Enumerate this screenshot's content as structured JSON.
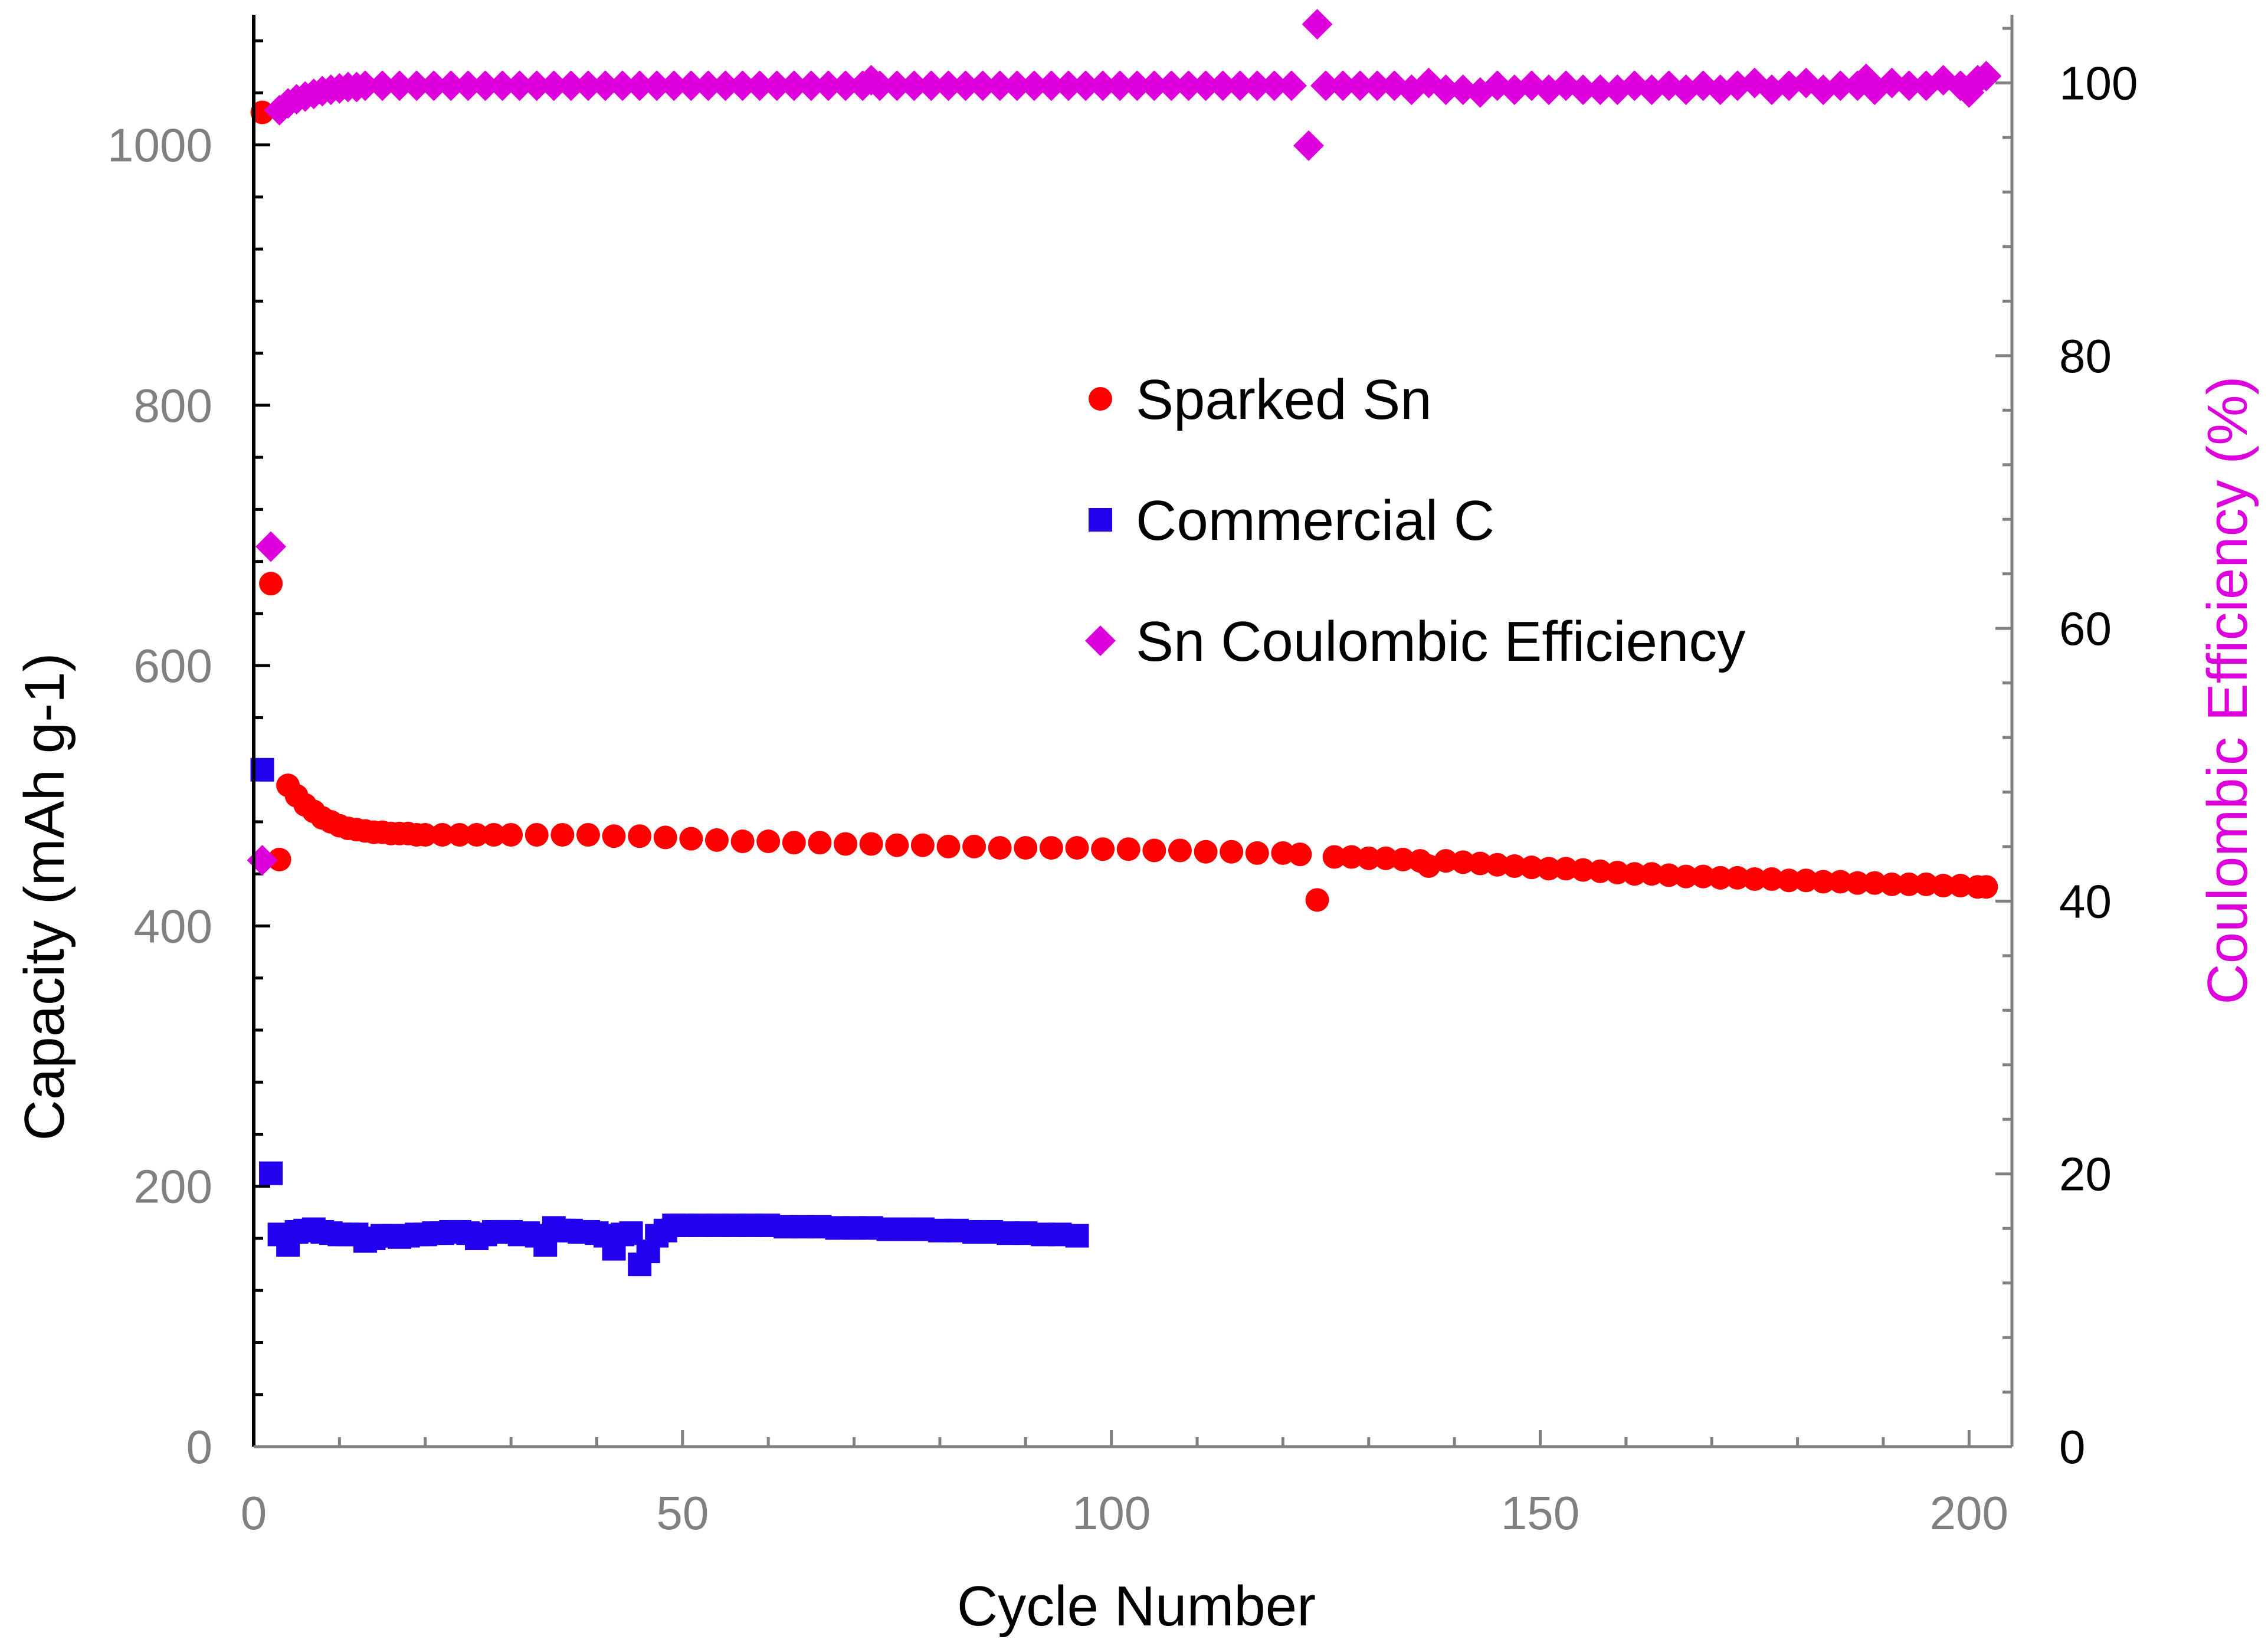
{
  "chart_data": {
    "type": "scatter",
    "xlabel": "Cycle Number",
    "ylabel_left": "Capacity (mAh g-1)",
    "ylabel_right": "Coulombic Efficiency (%)",
    "xlim": [
      0,
      205
    ],
    "ylim_left": [
      0,
      1100
    ],
    "ylim_right": [
      0,
      105
    ],
    "x_ticks": [
      0,
      50,
      100,
      150,
      200
    ],
    "y_ticks_left": [
      0,
      200,
      400,
      600,
      800,
      1000
    ],
    "y_ticks_right": [
      0,
      20,
      40,
      60,
      80,
      100
    ],
    "legend_position": "center-right",
    "colors": {
      "sparked_sn": "#ff0000",
      "commercial_c": "#2200ee",
      "coulombic": "#dd00dd",
      "right_axis_title": "#dd00dd",
      "left_tick_labels": "#808080",
      "right_tick_labels": "#000000"
    },
    "series": [
      {
        "name": "Sparked Sn",
        "axis": "left",
        "marker": "circle",
        "points": [
          [
            1,
            1025
          ],
          [
            2,
            663
          ],
          [
            3,
            451
          ],
          [
            4,
            508
          ],
          [
            5,
            500
          ],
          [
            6,
            493
          ],
          [
            7,
            488
          ],
          [
            8,
            483
          ],
          [
            9,
            480
          ],
          [
            10,
            477
          ],
          [
            11,
            475
          ],
          [
            12,
            474
          ],
          [
            13,
            473
          ],
          [
            14,
            472
          ],
          [
            15,
            472
          ],
          [
            16,
            471
          ],
          [
            17,
            471
          ],
          [
            18,
            471
          ],
          [
            19,
            470
          ],
          [
            20,
            470
          ],
          [
            22,
            470
          ],
          [
            24,
            470
          ],
          [
            26,
            470
          ],
          [
            28,
            470
          ],
          [
            30,
            470
          ],
          [
            33,
            470
          ],
          [
            36,
            470
          ],
          [
            39,
            470
          ],
          [
            42,
            469
          ],
          [
            45,
            469
          ],
          [
            48,
            468
          ],
          [
            51,
            467
          ],
          [
            54,
            466
          ],
          [
            57,
            465
          ],
          [
            60,
            465
          ],
          [
            63,
            464
          ],
          [
            66,
            464
          ],
          [
            69,
            463
          ],
          [
            72,
            463
          ],
          [
            75,
            462
          ],
          [
            78,
            462
          ],
          [
            81,
            461
          ],
          [
            84,
            461
          ],
          [
            87,
            460
          ],
          [
            90,
            460
          ],
          [
            93,
            460
          ],
          [
            96,
            460
          ],
          [
            99,
            459
          ],
          [
            102,
            459
          ],
          [
            105,
            458
          ],
          [
            108,
            458
          ],
          [
            111,
            457
          ],
          [
            114,
            457
          ],
          [
            117,
            456
          ],
          [
            120,
            456
          ],
          [
            122,
            455
          ],
          [
            124,
            420
          ],
          [
            126,
            453
          ],
          [
            128,
            453
          ],
          [
            130,
            452
          ],
          [
            132,
            452
          ],
          [
            134,
            451
          ],
          [
            136,
            450
          ],
          [
            137,
            446
          ],
          [
            139,
            450
          ],
          [
            141,
            449
          ],
          [
            143,
            448
          ],
          [
            145,
            447
          ],
          [
            147,
            446
          ],
          [
            149,
            445
          ],
          [
            151,
            444
          ],
          [
            153,
            444
          ],
          [
            155,
            443
          ],
          [
            157,
            442
          ],
          [
            159,
            441
          ],
          [
            161,
            440
          ],
          [
            163,
            440
          ],
          [
            165,
            439
          ],
          [
            167,
            438
          ],
          [
            169,
            438
          ],
          [
            171,
            437
          ],
          [
            173,
            437
          ],
          [
            175,
            436
          ],
          [
            177,
            436
          ],
          [
            179,
            435
          ],
          [
            181,
            435
          ],
          [
            183,
            434
          ],
          [
            185,
            434
          ],
          [
            187,
            433
          ],
          [
            189,
            433
          ],
          [
            191,
            432
          ],
          [
            193,
            432
          ],
          [
            195,
            432
          ],
          [
            197,
            431
          ],
          [
            199,
            431
          ],
          [
            201,
            430
          ],
          [
            202,
            430
          ]
        ]
      },
      {
        "name": "Commercial C",
        "axis": "left",
        "marker": "square",
        "points": [
          [
            1,
            520
          ],
          [
            2,
            210
          ],
          [
            3,
            163
          ],
          [
            4,
            155
          ],
          [
            5,
            165
          ],
          [
            6,
            166
          ],
          [
            7,
            167
          ],
          [
            8,
            165
          ],
          [
            9,
            164
          ],
          [
            10,
            163
          ],
          [
            11,
            163
          ],
          [
            12,
            163
          ],
          [
            13,
            158
          ],
          [
            14,
            160
          ],
          [
            15,
            162
          ],
          [
            16,
            162
          ],
          [
            17,
            161
          ],
          [
            18,
            162
          ],
          [
            19,
            163
          ],
          [
            20,
            163
          ],
          [
            21,
            164
          ],
          [
            22,
            164
          ],
          [
            23,
            165
          ],
          [
            24,
            165
          ],
          [
            25,
            164
          ],
          [
            26,
            160
          ],
          [
            27,
            163
          ],
          [
            28,
            165
          ],
          [
            29,
            165
          ],
          [
            30,
            165
          ],
          [
            31,
            163
          ],
          [
            32,
            164
          ],
          [
            33,
            162
          ],
          [
            34,
            155
          ],
          [
            35,
            168
          ],
          [
            36,
            166
          ],
          [
            37,
            166
          ],
          [
            38,
            165
          ],
          [
            39,
            165
          ],
          [
            40,
            164
          ],
          [
            41,
            162
          ],
          [
            42,
            152
          ],
          [
            43,
            163
          ],
          [
            44,
            164
          ],
          [
            45,
            140
          ],
          [
            46,
            150
          ],
          [
            47,
            162
          ],
          [
            48,
            166
          ],
          [
            49,
            170
          ],
          [
            50,
            170
          ],
          [
            52,
            170
          ],
          [
            54,
            170
          ],
          [
            56,
            170
          ],
          [
            58,
            170
          ],
          [
            60,
            170
          ],
          [
            62,
            169
          ],
          [
            64,
            169
          ],
          [
            66,
            169
          ],
          [
            68,
            168
          ],
          [
            70,
            168
          ],
          [
            72,
            168
          ],
          [
            74,
            167
          ],
          [
            76,
            167
          ],
          [
            78,
            167
          ],
          [
            80,
            166
          ],
          [
            82,
            166
          ],
          [
            84,
            165
          ],
          [
            86,
            165
          ],
          [
            88,
            164
          ],
          [
            90,
            164
          ],
          [
            92,
            163
          ],
          [
            94,
            163
          ],
          [
            96,
            162
          ]
        ]
      },
      {
        "name": "Sn Coulombic Efficiency",
        "axis": "right",
        "marker": "diamond",
        "points": [
          [
            1,
            43
          ],
          [
            2,
            66
          ],
          [
            3,
            98
          ],
          [
            4,
            98.5
          ],
          [
            5,
            98.8
          ],
          [
            6,
            99.0
          ],
          [
            7,
            99.2
          ],
          [
            8,
            99.4
          ],
          [
            9,
            99.5
          ],
          [
            10,
            99.6
          ],
          [
            11,
            99.7
          ],
          [
            12,
            99.7
          ],
          [
            13,
            99.8
          ],
          [
            15,
            99.8
          ],
          [
            17,
            99.8
          ],
          [
            19,
            99.8
          ],
          [
            21,
            99.8
          ],
          [
            23,
            99.8
          ],
          [
            25,
            99.8
          ],
          [
            27,
            99.8
          ],
          [
            29,
            99.8
          ],
          [
            31,
            99.8
          ],
          [
            33,
            99.8
          ],
          [
            35,
            99.8
          ],
          [
            37,
            99.8
          ],
          [
            39,
            99.8
          ],
          [
            41,
            99.8
          ],
          [
            43,
            99.8
          ],
          [
            45,
            99.8
          ],
          [
            47,
            99.8
          ],
          [
            49,
            99.8
          ],
          [
            51,
            99.8
          ],
          [
            53,
            99.8
          ],
          [
            55,
            99.8
          ],
          [
            57,
            99.8
          ],
          [
            59,
            99.8
          ],
          [
            61,
            99.8
          ],
          [
            63,
            99.8
          ],
          [
            65,
            99.8
          ],
          [
            67,
            99.8
          ],
          [
            69,
            99.8
          ],
          [
            71,
            99.8
          ],
          [
            72,
            100.2
          ],
          [
            73,
            99.8
          ],
          [
            75,
            99.8
          ],
          [
            77,
            99.8
          ],
          [
            79,
            99.8
          ],
          [
            81,
            99.8
          ],
          [
            83,
            99.8
          ],
          [
            85,
            99.8
          ],
          [
            87,
            99.8
          ],
          [
            89,
            99.8
          ],
          [
            91,
            99.8
          ],
          [
            93,
            99.8
          ],
          [
            95,
            99.8
          ],
          [
            97,
            99.8
          ],
          [
            99,
            99.8
          ],
          [
            101,
            99.8
          ],
          [
            103,
            99.8
          ],
          [
            105,
            99.8
          ],
          [
            107,
            99.8
          ],
          [
            109,
            99.8
          ],
          [
            111,
            99.8
          ],
          [
            113,
            99.8
          ],
          [
            115,
            99.8
          ],
          [
            117,
            99.8
          ],
          [
            119,
            99.8
          ],
          [
            121,
            99.8
          ],
          [
            123,
            95.4
          ],
          [
            124,
            104.3
          ],
          [
            125,
            99.8
          ],
          [
            127,
            99.8
          ],
          [
            129,
            99.8
          ],
          [
            131,
            99.8
          ],
          [
            133,
            99.8
          ],
          [
            135,
            99.5
          ],
          [
            137,
            100
          ],
          [
            139,
            99.5
          ],
          [
            141,
            99.5
          ],
          [
            143,
            99.3
          ],
          [
            145,
            99.8
          ],
          [
            147,
            99.5
          ],
          [
            149,
            99.8
          ],
          [
            151,
            99.5
          ],
          [
            153,
            99.8
          ],
          [
            155,
            99.5
          ],
          [
            157,
            99.5
          ],
          [
            159,
            99.5
          ],
          [
            161,
            99.8
          ],
          [
            163,
            99.5
          ],
          [
            165,
            99.8
          ],
          [
            167,
            99.5
          ],
          [
            169,
            99.8
          ],
          [
            171,
            99.5
          ],
          [
            173,
            99.8
          ],
          [
            175,
            100
          ],
          [
            177,
            99.5
          ],
          [
            179,
            99.8
          ],
          [
            181,
            100
          ],
          [
            183,
            99.5
          ],
          [
            185,
            99.8
          ],
          [
            187,
            99.8
          ],
          [
            188,
            100.3
          ],
          [
            189,
            99.5
          ],
          [
            191,
            100
          ],
          [
            193,
            99.8
          ],
          [
            195,
            99.8
          ],
          [
            197,
            100.2
          ],
          [
            199,
            99.8
          ],
          [
            200,
            99.3
          ],
          [
            201,
            100.2
          ],
          [
            202,
            100.5
          ]
        ]
      }
    ]
  }
}
